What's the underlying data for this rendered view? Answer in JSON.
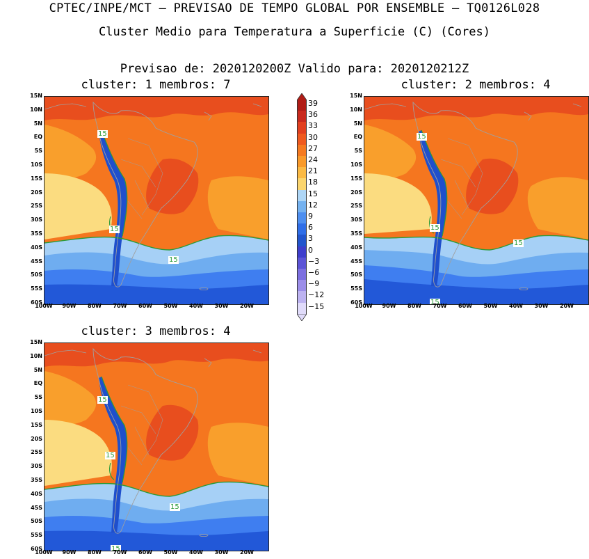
{
  "header": {
    "title": "CPTEC/INPE/MCT – PREVISAO DE TEMPO GLOBAL POR ENSEMBLE – TQ0126L028",
    "subtitle": "Cluster Medio para Temperatura a Superficie (C) (Cores)",
    "forecast_line": "Previsao de: 2020120200Z    Valido para: 2020120212Z"
  },
  "panels": [
    {
      "title": "cluster: 1  membros: 7",
      "contour_label": "15"
    },
    {
      "title": "cluster: 2  membros: 4",
      "contour_label": "15"
    },
    {
      "title": "cluster: 3  membros: 4",
      "contour_label": "15"
    }
  ],
  "axes": {
    "lat_labels": [
      "15N",
      "10N",
      "5N",
      "EQ",
      "5S",
      "10S",
      "15S",
      "20S",
      "25S",
      "30S",
      "35S",
      "40S",
      "45S",
      "50S",
      "55S",
      "60S"
    ],
    "lon_labels": [
      "100W",
      "90W",
      "80W",
      "70W",
      "60W",
      "50W",
      "40W",
      "30W",
      "20W"
    ]
  },
  "colorbar": {
    "labels": [
      "39",
      "36",
      "33",
      "30",
      "27",
      "24",
      "21",
      "18",
      "15",
      "12",
      "9",
      "6",
      "3",
      "0",
      "−3",
      "−6",
      "−9",
      "−12",
      "−15"
    ],
    "colors": {
      "c39": "#b01c16",
      "c36": "#c92a1e",
      "c33": "#e2401f",
      "c30": "#ef5a1f",
      "c27": "#f57a20",
      "c24": "#f99a2a",
      "c21": "#fbba44",
      "c18": "#fbd56e",
      "c15": "#aed6f6",
      "c12": "#75b2f0",
      "c9": "#4e8ff0",
      "c6": "#2f6ee8",
      "c3": "#2255cd",
      "c0": "#3e3ecc",
      "cm3": "#5c54d6",
      "cm6": "#7c6fe0",
      "cm9": "#9c8ee9",
      "cm12": "#bdb3f1",
      "cm15": "#e0dbfa"
    }
  },
  "map_colors": {
    "hot": "#e84e1e",
    "warm": "#f5761f",
    "mild": "#f99f2c",
    "cool": "#fbbb4a",
    "pale": "#fbdc80",
    "cold1": "#a6d0f6",
    "cold2": "#6fadf0",
    "cold3": "#3f7ef0",
    "cold4": "#2258d8",
    "andes": "#1f4fcc",
    "contour": "#2b9a38",
    "coast": "#a0a0a0"
  }
}
